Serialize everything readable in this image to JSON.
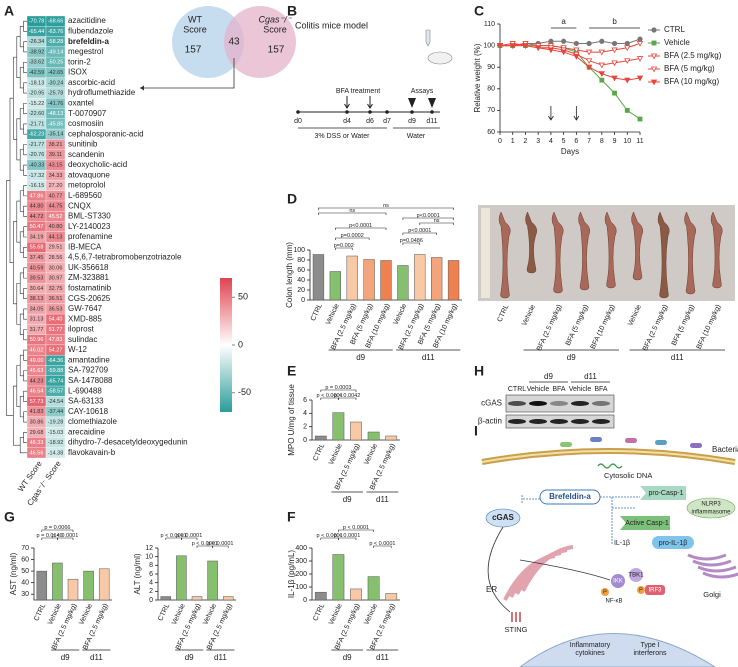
{
  "panel_labels": [
    "A",
    "B",
    "C",
    "D",
    "E",
    "F",
    "G",
    "H",
    "I"
  ],
  "chart_data": [
    {
      "type": "heatmap",
      "rows": [
        "azacitidine",
        "flubendazole",
        "brefeldin-a",
        "megestrol",
        "torin-2",
        "ISOX",
        "ascorbic-acid",
        "hydroflumethiazide",
        "oxantel",
        "T-0070907",
        "cosmosiin",
        "cephalosporanic-acid",
        "sunitinib",
        "scandenin",
        "deoxycholic-acid",
        "atovaquone",
        "metoprolol",
        "L-689560",
        "CNQX",
        "BML-ST330",
        "LY-2140023",
        "profenamine",
        "IB-MECA",
        "4,5,6,7-tetrabromobenzotriazole",
        "UK-356618",
        "ZM-323881",
        "fostamatinib",
        "CGS-20625",
        "GW-7647",
        "XMD-885",
        "iloprost",
        "sulindac",
        "W-12",
        "amantadine",
        "SA-792709",
        "SA-1478088",
        "L-690488",
        "SA-63133",
        "CAY-10618",
        "clomethiazole",
        "arecaidine",
        "dihydro-7-desacetyldeoxygedunin",
        "flavokavain-b"
      ],
      "highlight": 2,
      "series": [
        {
          "name": "WT Score",
          "values": [
            -70.78,
            -65.44,
            -26.34,
            -38.92,
            -33.62,
            -42.59,
            -18.13,
            -20.95,
            -15.22,
            -22.6,
            -21.71,
            -62.23,
            -21.77,
            -20.76,
            -40.33,
            -17.32,
            -16.15,
            47.86,
            44.8,
            44.72,
            50.47,
            34.19,
            55.68,
            37.45,
            40.59,
            39.53,
            30.64,
            38.13,
            34.05,
            31.13,
            31.77,
            50.96,
            46.02,
            49.0,
            45.63,
            44.23,
            46.54,
            57.73,
            41.83,
            30.86,
            29.68,
            48.33,
            46.56
          ],
          "value_labels": [
            "-70.78",
            "-65.44",
            "-26.34",
            "-38.92",
            "-33.62",
            "-42.59",
            "-18.13",
            "-20.95",
            "-15.22",
            "-22.60",
            "-21.71",
            "-62.23",
            "-21.77",
            "-20.76",
            "-40.33",
            "-17.32",
            "-16.15",
            "47.86",
            "44.80",
            "44.72",
            "50.47",
            "34.19",
            "55.68",
            "37.45",
            "40.59",
            "39.53",
            "30.64",
            "38.13",
            "34.05",
            "31.13",
            "31.77",
            "50.96",
            "46.02",
            "49.00",
            "45.63",
            "44.23",
            "46.54",
            "57.73",
            "41.83",
            "30.86",
            "29.68",
            "48.33",
            "46.56"
          ]
        },
        {
          "name": "Cgas⁻/⁻ Score",
          "values": [
            -68.66,
            -63.76,
            -58.28,
            -49.14,
            -50.25,
            -42.65,
            -30.24,
            -25.78,
            -41.76,
            -48.13,
            -45.85,
            -35.14,
            38.21,
            39.11,
            43.15,
            34.33,
            27.2,
            40.77,
            44.75,
            45.52,
            40.8,
            44.13,
            29.51,
            28.56,
            30.06,
            30.97,
            32.75,
            36.51,
            36.53,
            54.4,
            51.77,
            47.83,
            54.27,
            -64.36,
            -59.88,
            -65.74,
            -58.57,
            -24.54,
            -37.44,
            -19.28,
            -15.03,
            -18.92,
            -14.38
          ],
          "value_labels": [
            "-68.66",
            "-63.76",
            "-58.28",
            "-49.14",
            "-50.25",
            "-42.65",
            "-30.24",
            "-25.78",
            "-41.76",
            "-48.13",
            "-45.85",
            "-35.14",
            "38.21",
            "39.11",
            "43.15",
            "34.33",
            "27.20",
            "40.77",
            "44.75",
            "45.52",
            "40.80",
            "44.13",
            "29.51",
            "28.56",
            "30.06",
            "30.97",
            "32.75",
            "36.51",
            "36.53",
            "54.40",
            "51.77",
            "47.83",
            "54.27",
            "-64.36",
            "-59.88",
            "-65.74",
            "-58.57",
            "-24.54",
            "-37.44",
            "-19.28",
            "-15.03",
            "-18.92",
            "-14.38"
          ]
        }
      ],
      "clim": [
        -70,
        70
      ],
      "cticks": [
        50,
        0,
        -50
      ],
      "neg_color": "#2a9d9a",
      "pos_color": "#e0434f"
    },
    {
      "type": "line",
      "x": [
        0,
        1,
        2,
        3,
        4,
        5,
        6,
        7,
        8,
        9,
        10,
        11
      ],
      "xlim": [
        0,
        11
      ],
      "xticks": [
        0,
        1,
        2,
        3,
        4,
        5,
        6,
        7,
        8,
        9,
        10,
        11
      ],
      "ylim": [
        60,
        110
      ],
      "yticks": [
        60,
        70,
        80,
        90,
        100,
        110
      ],
      "xlabel": "Days",
      "ylabel": "Relative weight (%)",
      "treatment_days": [
        4,
        6
      ],
      "annotations": [
        {
          "text": "a",
          "from": 4,
          "to": 6
        },
        {
          "text": "b",
          "from": 7,
          "to": 11
        }
      ],
      "series": [
        {
          "name": "CTRL",
          "color": "#777777",
          "marker": "circle",
          "filled": true,
          "values": [
            100,
            100,
            101,
            101,
            102,
            102,
            101,
            101,
            102,
            101,
            101,
            103
          ]
        },
        {
          "name": "Vehicle",
          "color": "#5aa64a",
          "marker": "square",
          "filled": true,
          "values": [
            100,
            100,
            100,
            100,
            100,
            99,
            97,
            90,
            84,
            78,
            70,
            66
          ]
        },
        {
          "name": "BFA (2.5 mg/kg)",
          "color": "#e8453c",
          "marker": "triangle",
          "filled": false,
          "values": [
            100,
            100,
            101,
            100,
            100,
            99,
            98,
            97,
            97,
            98,
            99,
            101
          ]
        },
        {
          "name": "BFA (5 mg/kg)",
          "color": "#e8453c",
          "marker": "triangle",
          "filled": false,
          "values": [
            100,
            101,
            100,
            99,
            99,
            98,
            96,
            93,
            91,
            92,
            93,
            94
          ]
        },
        {
          "name": "BFA (10 mg/kg)",
          "color": "#e8453c",
          "marker": "triangle",
          "filled": true,
          "values": [
            100,
            100,
            100,
            99,
            98,
            97,
            95,
            90,
            87,
            85,
            84,
            85
          ]
        }
      ]
    },
    {
      "type": "bar",
      "ylabel": "Colon length (mm)",
      "ylim": [
        0,
        100
      ],
      "yticks": [
        0,
        20,
        40,
        60,
        80,
        100
      ],
      "categories": [
        "CTRL",
        "Vehicle",
        "BFA (2.5 mg/kg)",
        "BFA (5 mg/kg)",
        "BFA (10 mg/kg)",
        "Vehicle",
        "BFA (2.5 mg/kg)",
        "BFA (5 mg/kg)",
        "BFA (10 mg/kg)"
      ],
      "values": [
        91,
        57,
        88,
        81,
        79,
        69,
        91,
        85,
        79
      ],
      "colors": [
        "#8c8c8c",
        "#86c06f",
        "#f7c9a6",
        "#f4a47a",
        "#ef8150",
        "#86c06f",
        "#f7c9a6",
        "#f4a47a",
        "#ef8150"
      ],
      "groups": [
        {
          "label": "d9",
          "from": 1,
          "to": 4
        },
        {
          "label": "d11",
          "from": 5,
          "to": 8
        }
      ],
      "annotations": [
        {
          "text": "ns",
          "from": 0,
          "to": 4
        },
        {
          "text": "ns",
          "from": 0,
          "to": 8
        },
        {
          "text": "p<0.0001",
          "from": 1,
          "to": 4
        },
        {
          "text": "p=0.0002",
          "from": 1,
          "to": 3
        },
        {
          "text": "p=0.002",
          "from": 1,
          "to": 2
        },
        {
          "text": "p<0.0001",
          "from": 5,
          "to": 8
        },
        {
          "text": "p<0.0001",
          "from": 5,
          "to": 7
        },
        {
          "text": "p=0.0486",
          "from": 5,
          "to": 6
        },
        {
          "text": "ns",
          "from": 6,
          "to": 8
        }
      ]
    },
    {
      "type": "bar",
      "ylabel": "MPO U/mg of tissue",
      "ylim": [
        0,
        6
      ],
      "yticks": [
        0,
        2,
        4,
        6
      ],
      "categories": [
        "CTRL",
        "Vehicle",
        "BFA (2.5 mg/kg)",
        "Vehicle",
        "BFA (2.5 mg/kg)"
      ],
      "values": [
        0.6,
        4.1,
        2.7,
        1.2,
        0.6
      ],
      "colors": [
        "#8c8c8c",
        "#86c06f",
        "#f7c9a6",
        "#86c06f",
        "#f7c9a6"
      ],
      "groups": [
        {
          "label": "d9",
          "from": 1,
          "to": 2
        },
        {
          "label": "d11",
          "from": 3,
          "to": 4
        }
      ],
      "annotations": [
        {
          "text": "p = 0.0003",
          "from": 0,
          "to": 2
        },
        {
          "text": "p < 0.0001",
          "from": 0,
          "to": 1
        },
        {
          "text": "p = 0.0042",
          "from": 1,
          "to": 2
        }
      ]
    },
    {
      "type": "bar",
      "ylabel": "IL-1β (pg/mL)",
      "ylim": [
        0,
        400
      ],
      "yticks": [
        0,
        100,
        200,
        300,
        400
      ],
      "categories": [
        "CTRL",
        "Vehicle",
        "BFA (2.5 mg/kg)",
        "Vehicle",
        "BFA (2.5 mg/kg)"
      ],
      "values": [
        60,
        350,
        85,
        180,
        50
      ],
      "colors": [
        "#8c8c8c",
        "#86c06f",
        "#f7c9a6",
        "#86c06f",
        "#f7c9a6"
      ],
      "groups": [
        {
          "label": "d9",
          "from": 1,
          "to": 2
        },
        {
          "label": "d11",
          "from": 3,
          "to": 4
        }
      ],
      "annotations": [
        {
          "text": "p < 0.0001",
          "from": 1,
          "to": 3
        },
        {
          "text": "p < 0.0001",
          "from": 0,
          "to": 1
        },
        {
          "text": "p < 0.0001",
          "from": 1,
          "to": 2
        },
        {
          "text": "p < 0.0001",
          "from": 3,
          "to": 4
        }
      ]
    },
    {
      "type": "bar",
      "ylabel": "AST (ng/ml)",
      "ylim": [
        25,
        70
      ],
      "yticks": [
        30,
        40,
        50,
        60,
        70
      ],
      "categories": [
        "CTRL",
        "Vehicle",
        "BFA (2.5 mg/kg)",
        "Vehicle",
        "BFA (2.5 mg/kg)"
      ],
      "values": [
        50,
        57,
        43,
        50,
        52
      ],
      "colors": [
        "#8c8c8c",
        "#86c06f",
        "#f7c9a6",
        "#86c06f",
        "#f7c9a6"
      ],
      "groups": [
        {
          "label": "d9",
          "from": 1,
          "to": 2
        },
        {
          "label": "d11",
          "from": 3,
          "to": 4
        }
      ],
      "annotations": [
        {
          "text": "p = 0.0066",
          "from": 0,
          "to": 2
        },
        {
          "text": "p = 0.0140",
          "from": 0,
          "to": 1
        },
        {
          "text": "p < 0.0001",
          "from": 1,
          "to": 2
        }
      ]
    },
    {
      "type": "bar",
      "ylabel": "ALT (ng/ml)",
      "ylim": [
        0,
        12
      ],
      "yticks": [
        0,
        2,
        4,
        6,
        8,
        10,
        12
      ],
      "categories": [
        "CTRL",
        "Vehicle",
        "BFA (2.5 mg/kg)",
        "Vehicle",
        "BFA (2.5 mg/kg)"
      ],
      "values": [
        0.8,
        10.2,
        0.8,
        9.0,
        0.8
      ],
      "colors": [
        "#8c8c8c",
        "#86c06f",
        "#f7c9a6",
        "#86c06f",
        "#f7c9a6"
      ],
      "groups": [
        {
          "label": "d9",
          "from": 1,
          "to": 2
        },
        {
          "label": "d11",
          "from": 3,
          "to": 4
        }
      ],
      "annotations": [
        {
          "text": "p < 0.0001",
          "from": 0,
          "to": 1
        },
        {
          "text": "p < 0.0001",
          "from": 1,
          "to": 2
        },
        {
          "text": "p < 0.0001",
          "from": 2,
          "to": 3
        },
        {
          "text": "p < 0.0001",
          "from": 3,
          "to": 4
        }
      ]
    }
  ],
  "venn": {
    "left": {
      "lines": [
        "WT",
        "Score"
      ],
      "count": 157
    },
    "right": {
      "lines": [
        "Cgas⁻/⁻",
        "Score"
      ],
      "count": 157
    },
    "overlap": 43
  },
  "model": {
    "title": "Colitis mice model",
    "treatment": "BFA treatment",
    "assays": "Assays",
    "days": [
      "d0",
      "d4",
      "d6",
      "d7",
      "d9",
      "d11"
    ],
    "phases": [
      "3% DSS or Water",
      "Water"
    ]
  },
  "photo": {
    "categories": [
      "CTRL",
      "Vehicle",
      "BFA (2.5 mg/kg)",
      "BFA (5 mg/kg)",
      "BFA (10 mg/kg)",
      "Vehicle",
      "BFA (2.5 mg/kg)",
      "BFA (5 mg/kg)",
      "BFA (10 mg/kg)"
    ],
    "groups": [
      "d9",
      "d11"
    ]
  },
  "western": {
    "lanes": [
      "CTRL",
      "Vehicle",
      "BFA",
      "Vehicle",
      "BFA"
    ],
    "groups": [
      "d9",
      "d11"
    ],
    "proteins": [
      "cGAS",
      "β-actin"
    ]
  },
  "pathway": {
    "bacteria": "Bacteria",
    "dna": "Cytosolic DNA",
    "pro_casp1": "pro-Casp-1",
    "nlrp3": [
      "NLRP3",
      "inflammasome"
    ],
    "bfa": "Brefeldin-a",
    "cgas": "cGAS",
    "active_casp1": "Active Casp-1",
    "il1b": "IL-1β",
    "pro_il1b": "pro-IL-1β",
    "ikk": "IKK",
    "tbk1": "TBK1",
    "phospho": [
      "P",
      "P"
    ],
    "nfkb": "NF-κB",
    "irf3": "IRF3",
    "er": "ER",
    "sting": "STING",
    "golgi": "Golgi",
    "cytokines": [
      "Inflammatory",
      "cytokines"
    ],
    "interferons": [
      "Type I",
      "interferons"
    ]
  }
}
